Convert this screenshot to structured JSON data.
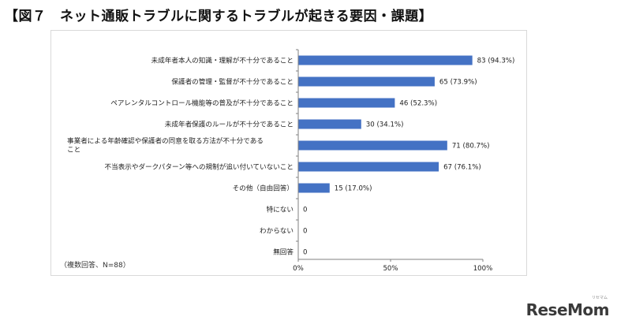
{
  "title": "【図７　ネット通販トラブルに関するトラブルが起きる要因・課題】",
  "footnote": "（複数回答、N=88）",
  "brand": {
    "name": "ReseMom",
    "sub": "リセマム"
  },
  "colors": {
    "bar": "#4472c4",
    "axis": "#808080",
    "text": "#222222"
  },
  "chart_data": {
    "type": "bar",
    "orientation": "horizontal",
    "title": "",
    "xlabel": "",
    "ylabel": "",
    "xlim": [
      0,
      100
    ],
    "xticks": [
      "0%",
      "50%",
      "100%"
    ],
    "grid": false,
    "categories": [
      [
        "未成年者本人の知識・理解が不十分であること"
      ],
      [
        "保護者の管理・監督が不十分であること"
      ],
      [
        "ペアレンタルコントロール機能等の普及が不十分であること"
      ],
      [
        "未成年者保護のルールが不十分であること"
      ],
      [
        "事業者による年齢確認や保護者の同意を取る方法が不十分である",
        "こと"
      ],
      [
        "不当表示やダークパターン等への規制が追い付いていないこと"
      ],
      [
        "その他（自由回答）"
      ],
      [
        "特にない"
      ],
      [
        "わからない"
      ],
      [
        "無回答"
      ]
    ],
    "values": [
      94.3,
      73.9,
      52.3,
      34.1,
      80.7,
      76.1,
      17.0,
      0,
      0,
      0
    ],
    "labels": [
      "83 (94.3%)",
      "65 (73.9%)",
      "46 (52.3%)",
      "30 (34.1%)",
      "71 (80.7%)",
      "67 (76.1%)",
      "15 (17.0%)",
      "0",
      "0",
      "0"
    ]
  }
}
